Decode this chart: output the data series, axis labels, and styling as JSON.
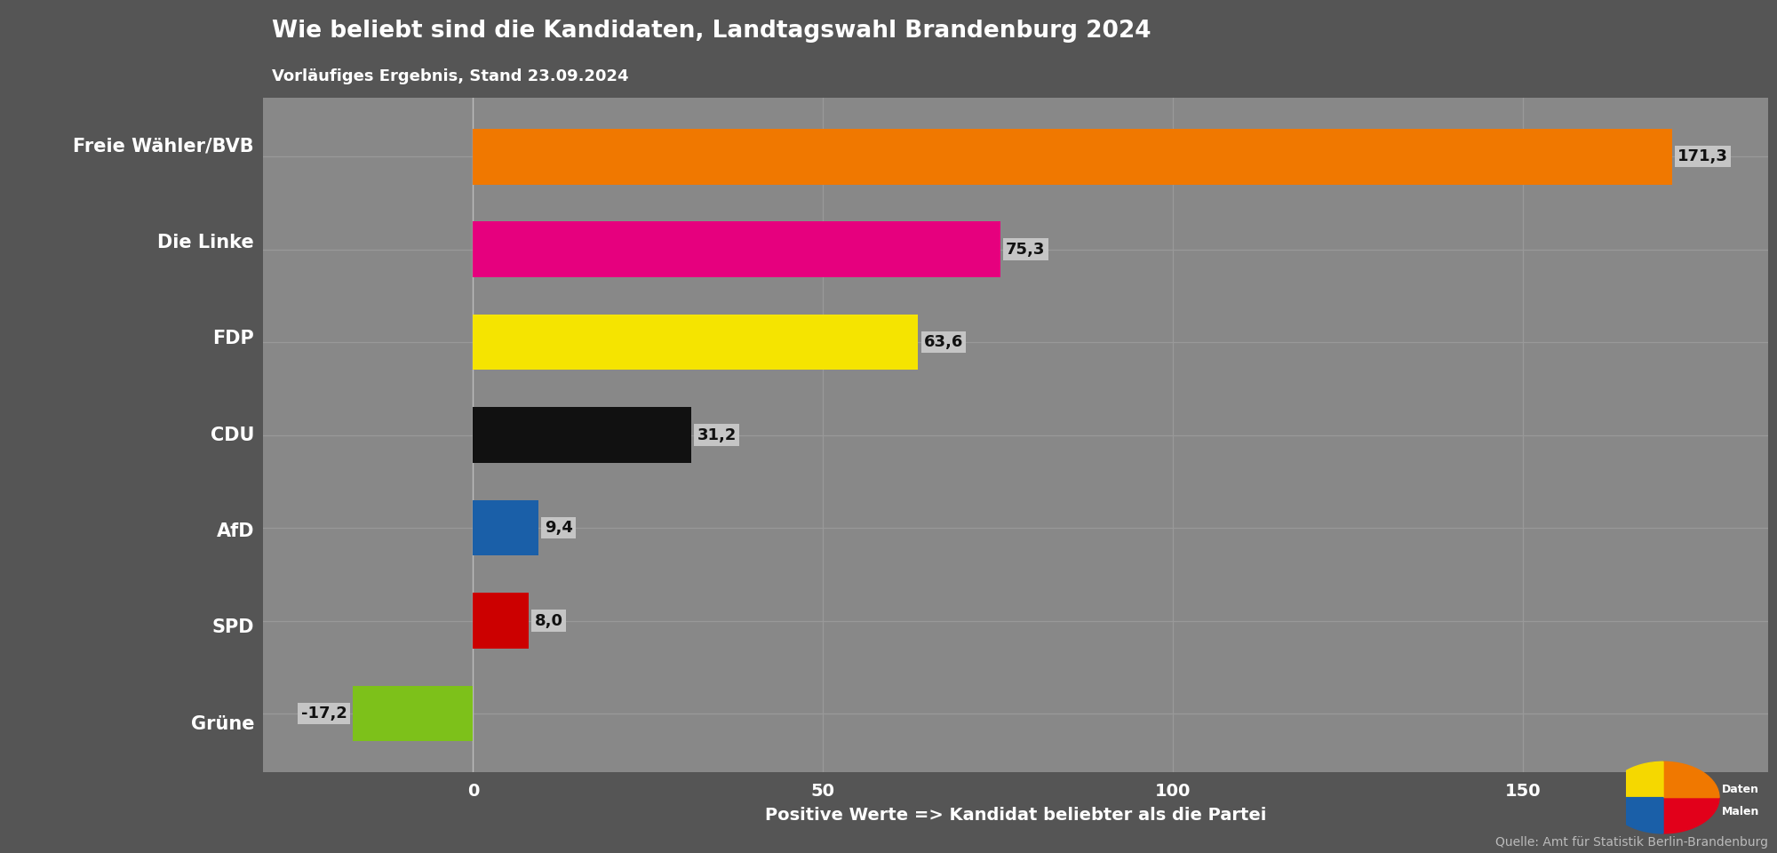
{
  "title": "Wie beliebt sind die Kandidaten, Landtagswahl Brandenburg 2024",
  "subtitle": "Vorläufiges Ergebnis, Stand 23.09.2024",
  "xlabel": "Positive Werte => Kandidat beliebter als die Partei",
  "source": "Quelle: Amt für Statistik Berlin-Brandenburg",
  "categories": [
    "Grüne",
    "SPD",
    "AfD",
    "CDU",
    "FDP",
    "Die Linke",
    "Freie Wähler/BVB"
  ],
  "values": [
    -17.2,
    8.0,
    9.4,
    31.2,
    63.6,
    75.3,
    171.3
  ],
  "bar_colors": [
    "#7dc11a",
    "#cc0000",
    "#1a5fa8",
    "#111111",
    "#f5e400",
    "#e6007e",
    "#f07800"
  ],
  "bg_color": "#555555",
  "header_bg": "#3d3d3d",
  "plot_bg": "#888888",
  "left_panel_bg": "#555555",
  "title_color": "#ffffff",
  "subtitle_color": "#ffffff",
  "label_color": "#ffffff",
  "tick_color": "#ffffff",
  "xlabel_color": "#ffffff",
  "source_color": "#bbbbbb",
  "xlim": [
    -30,
    185
  ],
  "xticks": [
    0,
    50,
    100,
    150
  ],
  "grid_color": "#999999",
  "bar_height": 0.6,
  "label_fontsize": 15,
  "value_fontsize": 13,
  "title_fontsize": 19,
  "subtitle_fontsize": 13,
  "xlabel_fontsize": 14,
  "source_fontsize": 10,
  "tick_fontsize": 14
}
